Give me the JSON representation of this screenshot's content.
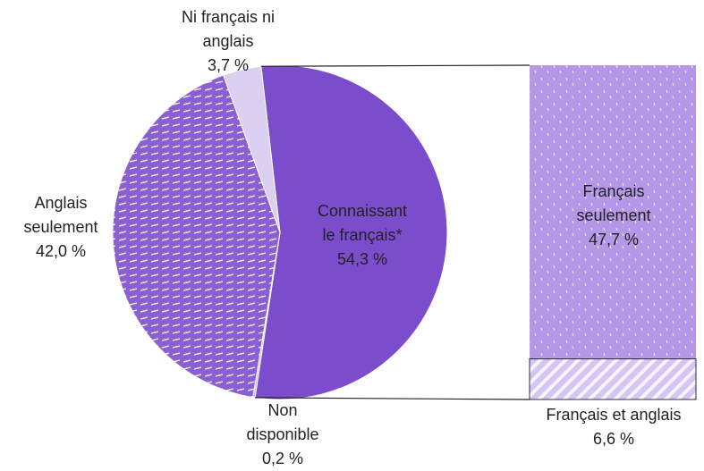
{
  "chart_data": {
    "type": "pie-of-bar",
    "categories": [
      [
        "Connaissant",
        "le français*"
      ],
      [
        "Non",
        "disponible"
      ],
      [
        "Anglais",
        "seulement"
      ],
      [
        "Ni français ni",
        "anglais"
      ]
    ],
    "values": [
      54.3,
      0.2,
      42.0,
      3.7
    ],
    "value_labels": [
      "54,3 %",
      "0,2 %",
      "42,0 %",
      "3,7 %"
    ],
    "colors": [
      "#7b4dcc",
      "#c9b8ee",
      "#8a5fd4",
      "#dcd0f2"
    ],
    "bar": {
      "categories": [
        [
          "Français",
          "seulement"
        ],
        [
          "Français et anglais"
        ]
      ],
      "values": [
        47.7,
        6.6
      ],
      "value_labels": [
        "47,7 %",
        "6,6 %"
      ],
      "colors": [
        "#b497e6",
        "#d4c5f2"
      ]
    }
  }
}
